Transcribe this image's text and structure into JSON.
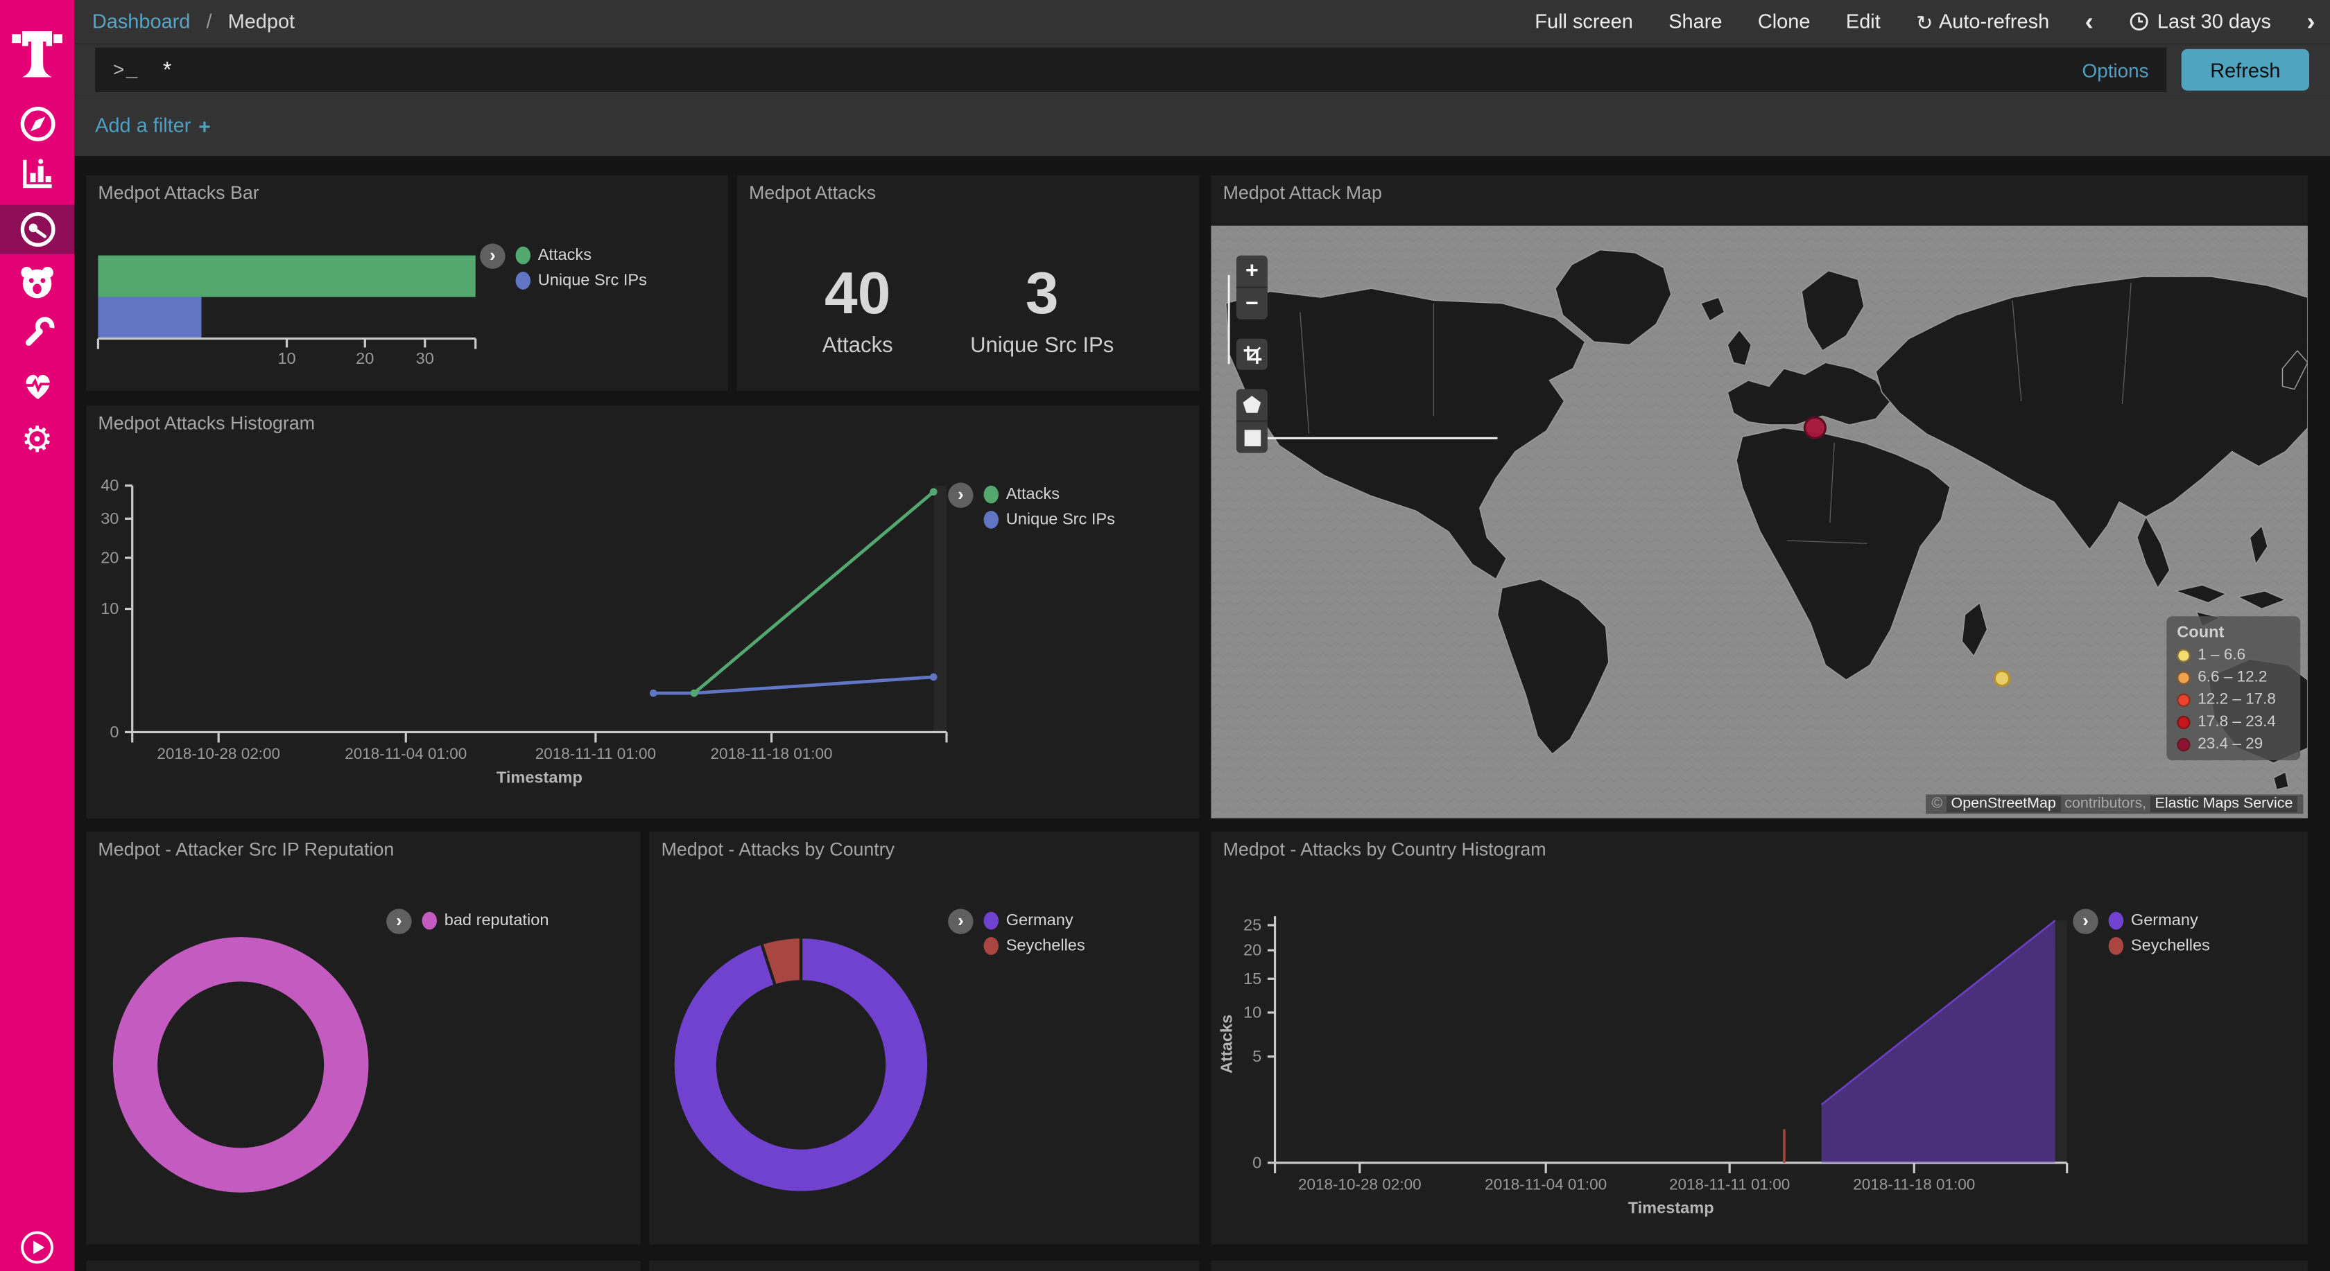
{
  "colors": {
    "brand_magenta": "#e20074",
    "active_nav_bg": "#8d0e57",
    "link_blue": "#4f9fc4",
    "refresh_button": "#4fa5c0",
    "topbar_bg": "#333333",
    "page_bg": "#141414",
    "panel_bg": "#1e1e1e",
    "series_green": "#52a86f",
    "series_blue": "#6175c5",
    "series_orchid": "#c45bc0",
    "series_purple": "#7142d0",
    "series_red": "#aa4642"
  },
  "sidebar": {
    "icons": [
      "telekom-logo",
      "compass",
      "bar-chart",
      "gauge",
      "bear",
      "wrench",
      "heartbeat",
      "gear",
      "play"
    ]
  },
  "topbar": {
    "breadcrumb": {
      "section": "Dashboard",
      "separator": "/",
      "page": "Medpot"
    },
    "menu": [
      "Full screen",
      "Share",
      "Clone",
      "Edit"
    ],
    "auto_refresh": "Auto-refresh",
    "prev_arrow": "‹",
    "next_arrow": "›",
    "time_range": "Last 30 days"
  },
  "querybar": {
    "prompt": ">_",
    "value": "*",
    "options": "Options",
    "refresh": "Refresh"
  },
  "filterbar": {
    "label": "Add a filter",
    "plus": "+"
  },
  "panels": {
    "attacks_bar": {
      "title": "Medpot Attacks Bar"
    },
    "attacks_metric": {
      "title": "Medpot Attacks"
    },
    "attack_map": {
      "title": "Medpot Attack Map"
    },
    "attacks_histogram": {
      "title": "Medpot Attacks Histogram"
    },
    "reputation": {
      "title": "Medpot - Attacker Src IP Reputation"
    },
    "country": {
      "title": "Medpot - Attacks by Country"
    },
    "country_histogram": {
      "title": "Medpot - Attacks by Country Histogram"
    }
  },
  "map_controls": {
    "zoom_in": "+",
    "zoom_out": "−",
    "tools": [
      "crop",
      "polygon",
      "rectangle"
    ]
  },
  "chart_data": [
    {
      "id": "attacks-bar",
      "type": "bar",
      "orientation": "horizontal",
      "x_scale": "square root",
      "x_max": 40,
      "x_ticks": [
        10,
        20,
        30
      ],
      "series": [
        {
          "label": "Attacks",
          "color": "#52a86f",
          "value": 40
        },
        {
          "label": "Unique Src IPs",
          "color": "#6175c5",
          "value": 3
        }
      ]
    },
    {
      "id": "attacks-metric",
      "type": "metric",
      "metrics": [
        {
          "value": "40",
          "label": "Attacks"
        },
        {
          "value": "3",
          "label": "Unique Src IPs"
        }
      ]
    },
    {
      "id": "attack-map",
      "type": "map",
      "legend_title": "Count",
      "legend": [
        {
          "range": "1 – 6.6",
          "color": "#f3dd71"
        },
        {
          "range": "6.6 – 12.2",
          "color": "#eda34f"
        },
        {
          "range": "12.2 – 17.8",
          "color": "#e8432f"
        },
        {
          "range": "17.8 – 23.4",
          "color": "#c3161f"
        },
        {
          "range": "23.4 – 29",
          "color": "#8e1136"
        }
      ],
      "points": [
        {
          "label": "europe-cluster",
          "bucket": "23.4 – 29",
          "color": "#a8173c",
          "edge": "#5f0c22",
          "x": 407,
          "y": 136,
          "r": 7
        },
        {
          "label": "indian-ocean-cluster",
          "bucket": "1 – 6.6",
          "color": "#ecd264",
          "edge": "#b98f2e",
          "x": 533,
          "y": 305,
          "r": 5
        }
      ],
      "attribution": {
        "prefix": "© ",
        "osm": "OpenStreetMap",
        "middle": " contributors, ",
        "ems": "Elastic Maps Service"
      }
    },
    {
      "id": "attacks-histogram",
      "type": "line",
      "y_scale": "square root",
      "y_max": 40,
      "y_ticks": [
        0,
        10,
        20,
        30,
        40
      ],
      "x_label": "Timestamp",
      "x_ticks": [
        {
          "label": "2018-10-28 02:00",
          "f": 0.106
        },
        {
          "label": "2018-11-04 01:00",
          "f": 0.336
        },
        {
          "label": "2018-11-11 01:00",
          "f": 0.569
        },
        {
          "label": "2018-11-18 01:00",
          "f": 0.785
        }
      ],
      "series": [
        {
          "label": "Attacks",
          "color": "#52a86f",
          "points": [
            {
              "date": "2018-11-14",
              "v": 1,
              "f": 0.69
            },
            {
              "date": "2018-11-23",
              "v": 38,
              "f": 0.984
            }
          ]
        },
        {
          "label": "Unique Src IPs",
          "color": "#6175c5",
          "points": [
            {
              "date": "2018-11-13",
              "v": 1,
              "f": 0.64
            },
            {
              "date": "2018-11-14",
              "v": 1,
              "f": 0.69
            },
            {
              "date": "2018-11-23",
              "v": 2,
              "f": 0.984
            }
          ]
        }
      ]
    },
    {
      "id": "reputation-donut",
      "type": "pie",
      "donut": true,
      "slices": [
        {
          "label": "bad reputation",
          "color": "#c45bc0",
          "fraction": 1
        }
      ]
    },
    {
      "id": "country-donut",
      "type": "pie",
      "donut": true,
      "slices": [
        {
          "label": "Germany",
          "color": "#7142d0",
          "value": 38,
          "fraction": 0.95
        },
        {
          "label": "Seychelles",
          "color": "#aa4642",
          "value": 2,
          "fraction": 0.05
        }
      ]
    },
    {
      "id": "country-histogram",
      "type": "area",
      "y_scale": "square root",
      "y_max": 25,
      "y_ticks": [
        0,
        5,
        10,
        15,
        20,
        25
      ],
      "y_label": "Attacks",
      "x_label": "Timestamp",
      "x_ticks": [
        {
          "label": "2018-10-28 02:00",
          "f": 0.107
        },
        {
          "label": "2018-11-04 01:00",
          "f": 0.342
        },
        {
          "label": "2018-11-11 01:00",
          "f": 0.574
        },
        {
          "label": "2018-11-18 01:00",
          "f": 0.807
        }
      ],
      "series": [
        {
          "label": "Germany",
          "color": "#7142d0",
          "fill_opacity": 0.52,
          "style": "area",
          "points": [
            {
              "date": "2018-11-14",
              "v": 1.5,
              "f": 0.69
            },
            {
              "date": "2018-11-23",
              "v": 26,
              "f": 0.985
            }
          ]
        },
        {
          "label": "Seychelles",
          "color": "#aa4642",
          "style": "spike",
          "points": [
            {
              "date": "2018-11-13",
              "v": 0.5,
              "f": 0.643
            }
          ]
        }
      ]
    }
  ]
}
